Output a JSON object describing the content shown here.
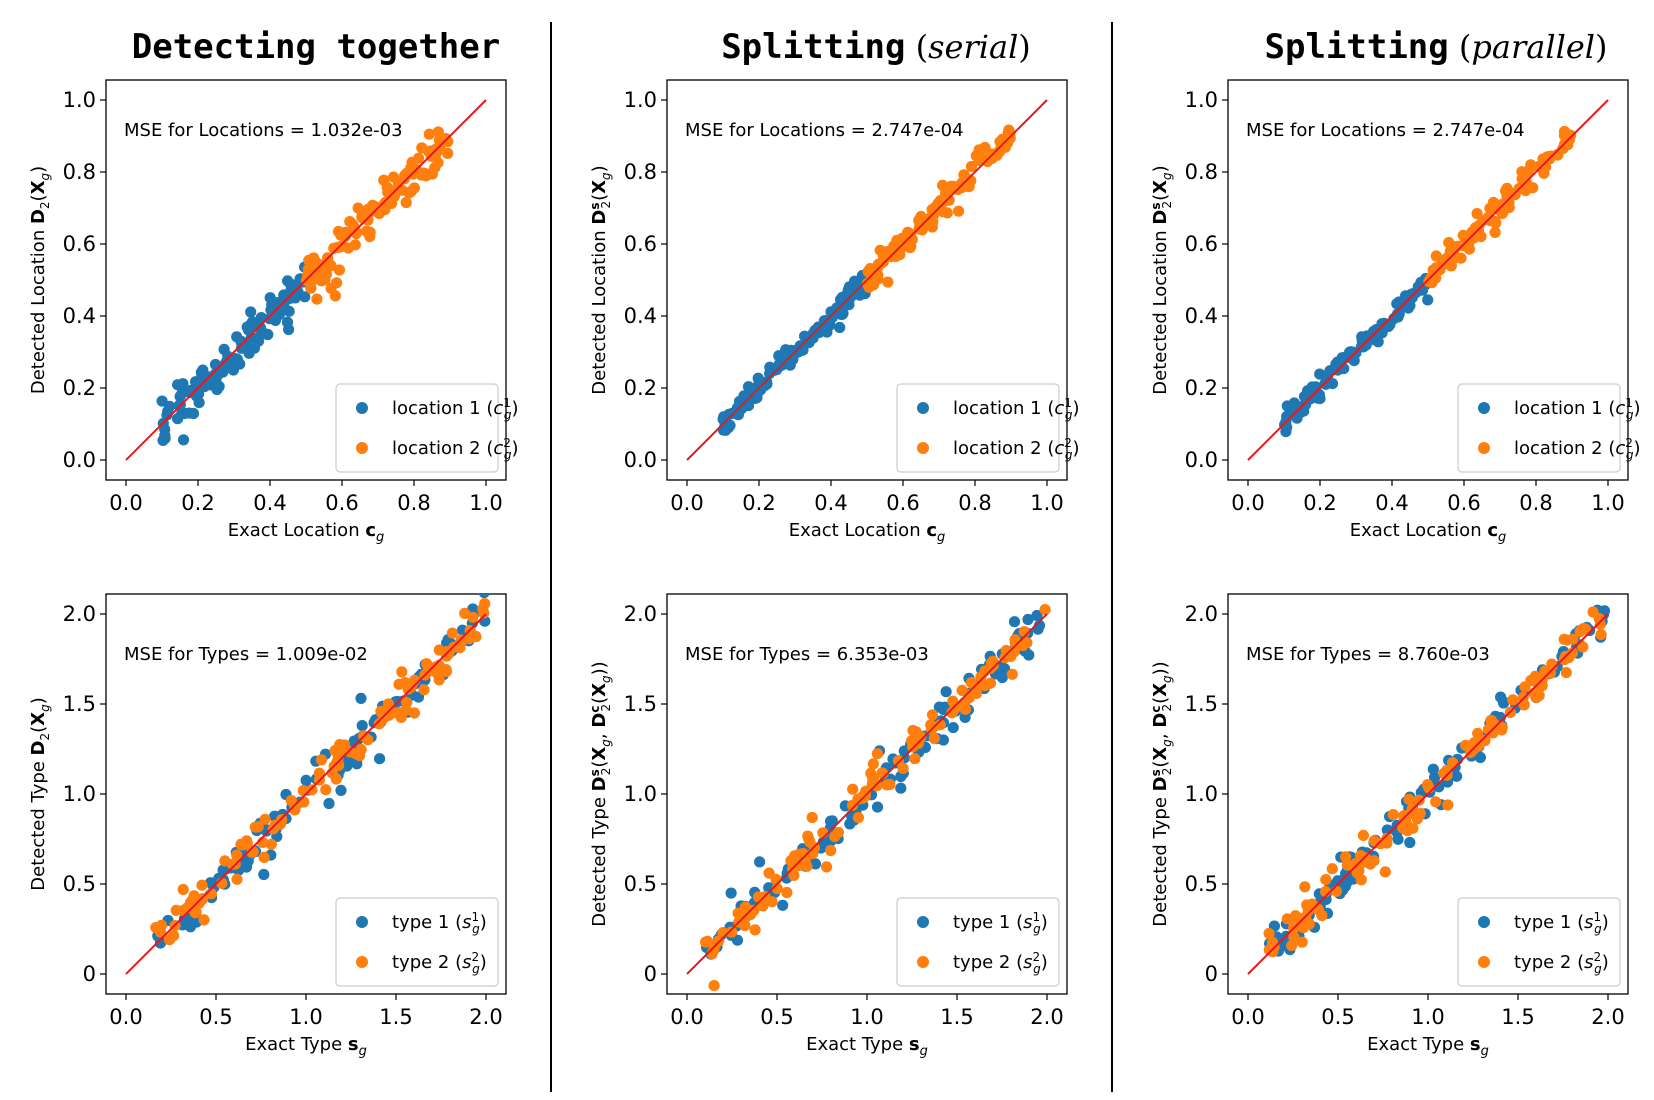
{
  "columns": [
    {
      "title_main": "Detecting together",
      "title_paren": "",
      "title_italic": ""
    },
    {
      "title_main": "Splitting",
      "title_paren": "serial",
      "title_italic": "serial"
    },
    {
      "title_main": "Splitting",
      "title_paren": "parallel",
      "title_italic": "parallel"
    }
  ],
  "colors": {
    "series1": "#1f77b4",
    "series2": "#ff7f0e",
    "reference": "#e41a1c",
    "axes": "#000000",
    "legend_border": "#cccccc"
  },
  "chart_data": [
    {
      "type": "scatter",
      "row": 0,
      "col": 0,
      "xlabel": "Exact Location c_g",
      "xlabel_plain": "Exact Location ",
      "xlabel_bold": "c",
      "ylabel_plain": "Detected Location ",
      "ylabel_bold": "D",
      "ylabel_rest": "2(X_g)",
      "xlim": [
        0,
        1
      ],
      "ylim": [
        0,
        1
      ],
      "xticks": [
        0.0,
        0.2,
        0.4,
        0.6,
        0.8,
        1.0
      ],
      "xtick_labels": [
        "0.0",
        "0.2",
        "0.4",
        "0.6",
        "0.8",
        "1.0"
      ],
      "yticks": [
        0.0,
        0.2,
        0.4,
        0.6,
        0.8,
        1.0
      ],
      "ytick_labels": [
        "0.0",
        "0.2",
        "0.4",
        "0.6",
        "0.8",
        "1.0"
      ],
      "annotation": "MSE for Locations = 1.032e-03",
      "legend_position": "lower-right",
      "reference_line": {
        "from": [
          0,
          0
        ],
        "to": [
          1,
          1
        ]
      },
      "series": [
        {
          "name": "location 1 (c_g^1)",
          "legend_text": "location 1",
          "sym": "c",
          "sup": "1",
          "points": {
            "x_range": [
              0.1,
              0.5
            ],
            "noise": 0.03,
            "n": 120,
            "seed": 11
          }
        },
        {
          "name": "location 2 (c_g^2)",
          "legend_text": "location 2",
          "sym": "c",
          "sup": "2",
          "points": {
            "x_range": [
              0.5,
              0.9
            ],
            "noise": 0.03,
            "n": 120,
            "seed": 12
          }
        }
      ]
    },
    {
      "type": "scatter",
      "row": 0,
      "col": 1,
      "xlabel": "Exact Location c_g",
      "xlabel_plain": "Exact Location ",
      "xlabel_bold": "c",
      "ylabel_plain": "Detected Location ",
      "ylabel_bold": "D",
      "ylabel_rest": "s2(X_g)",
      "xlim": [
        0,
        1
      ],
      "ylim": [
        0,
        1
      ],
      "xticks": [
        0.0,
        0.2,
        0.4,
        0.6,
        0.8,
        1.0
      ],
      "xtick_labels": [
        "0.0",
        "0.2",
        "0.4",
        "0.6",
        "0.8",
        "1.0"
      ],
      "yticks": [
        0.0,
        0.2,
        0.4,
        0.6,
        0.8,
        1.0
      ],
      "ytick_labels": [
        "0.0",
        "0.2",
        "0.4",
        "0.6",
        "0.8",
        "1.0"
      ],
      "annotation": "MSE for Locations = 2.747e-04",
      "legend_position": "lower-right",
      "reference_line": {
        "from": [
          0,
          0
        ],
        "to": [
          1,
          1
        ]
      },
      "series": [
        {
          "name": "location 1 (c_g^1)",
          "legend_text": "location 1",
          "sym": "c",
          "sup": "1",
          "points": {
            "x_range": [
              0.1,
              0.5
            ],
            "noise": 0.015,
            "n": 120,
            "seed": 21
          }
        },
        {
          "name": "location 2 (c_g^2)",
          "legend_text": "location 2",
          "sym": "c",
          "sup": "2",
          "points": {
            "x_range": [
              0.5,
              0.9
            ],
            "noise": 0.015,
            "n": 120,
            "seed": 22
          }
        }
      ]
    },
    {
      "type": "scatter",
      "row": 0,
      "col": 2,
      "xlabel": "Exact Location c_g",
      "xlabel_plain": "Exact Location ",
      "xlabel_bold": "c",
      "ylabel_plain": "Detected Location ",
      "ylabel_bold": "D",
      "ylabel_rest": "s2(X_g)",
      "xlim": [
        0,
        1
      ],
      "ylim": [
        0,
        1
      ],
      "xticks": [
        0.0,
        0.2,
        0.4,
        0.6,
        0.8,
        1.0
      ],
      "xtick_labels": [
        "0.0",
        "0.2",
        "0.4",
        "0.6",
        "0.8",
        "1.0"
      ],
      "yticks": [
        0.0,
        0.2,
        0.4,
        0.6,
        0.8,
        1.0
      ],
      "ytick_labels": [
        "0.0",
        "0.2",
        "0.4",
        "0.6",
        "0.8",
        "1.0"
      ],
      "annotation": "MSE for Locations = 2.747e-04",
      "legend_position": "lower-right",
      "reference_line": {
        "from": [
          0,
          0
        ],
        "to": [
          1,
          1
        ]
      },
      "series": [
        {
          "name": "location 1 (c_g^1)",
          "legend_text": "location 1",
          "sym": "c",
          "sup": "1",
          "points": {
            "x_range": [
              0.1,
              0.5
            ],
            "noise": 0.015,
            "n": 120,
            "seed": 31
          }
        },
        {
          "name": "location 2 (c_g^2)",
          "legend_text": "location 2",
          "sym": "c",
          "sup": "2",
          "points": {
            "x_range": [
              0.5,
              0.9
            ],
            "noise": 0.015,
            "n": 120,
            "seed": 32
          }
        }
      ]
    },
    {
      "type": "scatter",
      "row": 1,
      "col": 0,
      "xlabel": "Exact Type s_g",
      "xlabel_plain": "Exact Type ",
      "xlabel_bold": "s",
      "ylabel_plain": "Detected Type ",
      "ylabel_bold": "D",
      "ylabel_rest": "2(X_g)",
      "xlim": [
        0,
        2
      ],
      "ylim": [
        0,
        2
      ],
      "xticks": [
        0.0,
        0.5,
        1.0,
        1.5,
        2.0
      ],
      "xtick_labels": [
        "0.0",
        "0.5",
        "1.0",
        "1.5",
        "2.0"
      ],
      "yticks": [
        0.0,
        0.5,
        1.0,
        1.5,
        2.0
      ],
      "ytick_labels": [
        "0",
        "0.5",
        "1.0",
        "1.5",
        "2.0"
      ],
      "annotation": "MSE for Types = 1.009e-02",
      "legend_position": "lower-right",
      "reference_line": {
        "from": [
          0,
          0
        ],
        "to": [
          2,
          2
        ]
      },
      "series": [
        {
          "name": "type 1 (s_g^1)",
          "legend_text": "type 1",
          "sym": "s",
          "sup": "1",
          "points": {
            "x_range": [
              0.15,
              2.0
            ],
            "noise": 0.06,
            "n": 120,
            "seed": 41
          }
        },
        {
          "name": "type 2 (s_g^2)",
          "legend_text": "type 2",
          "sym": "s",
          "sup": "2",
          "points": {
            "x_range": [
              0.15,
              2.0
            ],
            "noise": 0.06,
            "n": 120,
            "seed": 42
          }
        }
      ]
    },
    {
      "type": "scatter",
      "row": 1,
      "col": 1,
      "xlabel": "Exact Type s_g",
      "xlabel_plain": "Exact Type ",
      "xlabel_bold": "s",
      "ylabel_plain": "Detected Type ",
      "ylabel_bold": "D",
      "ylabel_rest": "s2(X_g, D c2(X_g))",
      "xlim": [
        0,
        2
      ],
      "ylim": [
        0,
        2
      ],
      "xticks": [
        0.0,
        0.5,
        1.0,
        1.5,
        2.0
      ],
      "xtick_labels": [
        "0.0",
        "0.5",
        "1.0",
        "1.5",
        "2.0"
      ],
      "yticks": [
        0.0,
        0.5,
        1.0,
        1.5,
        2.0
      ],
      "ytick_labels": [
        "0",
        "0.5",
        "1.0",
        "1.5",
        "2.0"
      ],
      "annotation": "MSE for Types = 6.353e-03",
      "legend_position": "lower-right",
      "reference_line": {
        "from": [
          0,
          0
        ],
        "to": [
          2,
          2
        ]
      },
      "series": [
        {
          "name": "type 1 (s_g^1)",
          "legend_text": "type 1",
          "sym": "s",
          "sup": "1",
          "points": {
            "x_range": [
              0.1,
              2.0
            ],
            "noise": 0.05,
            "n": 120,
            "seed": 51
          }
        },
        {
          "name": "type 2 (s_g^2)",
          "legend_text": "type 2",
          "sym": "s",
          "sup": "2",
          "points": {
            "x_range": [
              0.1,
              2.0
            ],
            "noise": 0.05,
            "n": 120,
            "seed": 52
          }
        }
      ]
    },
    {
      "type": "scatter",
      "row": 1,
      "col": 2,
      "xlabel": "Exact Type s_g",
      "xlabel_plain": "Exact Type ",
      "xlabel_bold": "s",
      "ylabel_plain": "Detected Type ",
      "ylabel_bold": "D",
      "ylabel_rest": "s2(X_g, D c2(X_g))",
      "xlim": [
        0,
        2
      ],
      "ylim": [
        0,
        2
      ],
      "xticks": [
        0.0,
        0.5,
        1.0,
        1.5,
        2.0
      ],
      "xtick_labels": [
        "0.0",
        "0.5",
        "1.0",
        "1.5",
        "2.0"
      ],
      "yticks": [
        0.0,
        0.5,
        1.0,
        1.5,
        2.0
      ],
      "ytick_labels": [
        "0",
        "0.5",
        "1.0",
        "1.5",
        "2.0"
      ],
      "annotation": "MSE for Types = 8.760e-03",
      "legend_position": "lower-right",
      "reference_line": {
        "from": [
          0,
          0
        ],
        "to": [
          2,
          2
        ]
      },
      "series": [
        {
          "name": "type 1 (s_g^1)",
          "legend_text": "type 1",
          "sym": "s",
          "sup": "1",
          "points": {
            "x_range": [
              0.1,
              2.0
            ],
            "noise": 0.055,
            "n": 120,
            "seed": 61
          }
        },
        {
          "name": "type 2 (s_g^2)",
          "legend_text": "type 2",
          "sym": "s",
          "sup": "2",
          "points": {
            "x_range": [
              0.1,
              2.0
            ],
            "noise": 0.055,
            "n": 120,
            "seed": 62
          }
        }
      ]
    }
  ]
}
